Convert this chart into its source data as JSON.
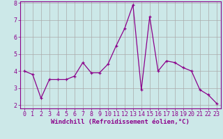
{
  "x": [
    0,
    1,
    2,
    3,
    4,
    5,
    6,
    7,
    8,
    9,
    10,
    11,
    12,
    13,
    14,
    15,
    16,
    17,
    18,
    19,
    20,
    21,
    22,
    23
  ],
  "y": [
    4.0,
    3.8,
    2.4,
    3.5,
    3.5,
    3.5,
    3.7,
    4.5,
    3.9,
    3.9,
    4.4,
    5.5,
    6.5,
    7.9,
    2.9,
    7.2,
    4.0,
    4.6,
    4.5,
    4.2,
    4.0,
    2.9,
    2.6,
    2.1
  ],
  "line_color": "#8b008b",
  "marker": "+",
  "bg_color": "#cce8e8",
  "grid_color": "#aaaaaa",
  "xlabel": "Windchill (Refroidissement éolien,°C)",
  "xlabel_fontsize": 6.5,
  "tick_fontsize": 6.0,
  "ylim": [
    1.8,
    8.1
  ],
  "yticks": [
    2,
    3,
    4,
    5,
    6,
    7,
    8
  ],
  "xticks": [
    0,
    1,
    2,
    3,
    4,
    5,
    6,
    7,
    8,
    9,
    10,
    11,
    12,
    13,
    14,
    15,
    16,
    17,
    18,
    19,
    20,
    21,
    22,
    23
  ]
}
